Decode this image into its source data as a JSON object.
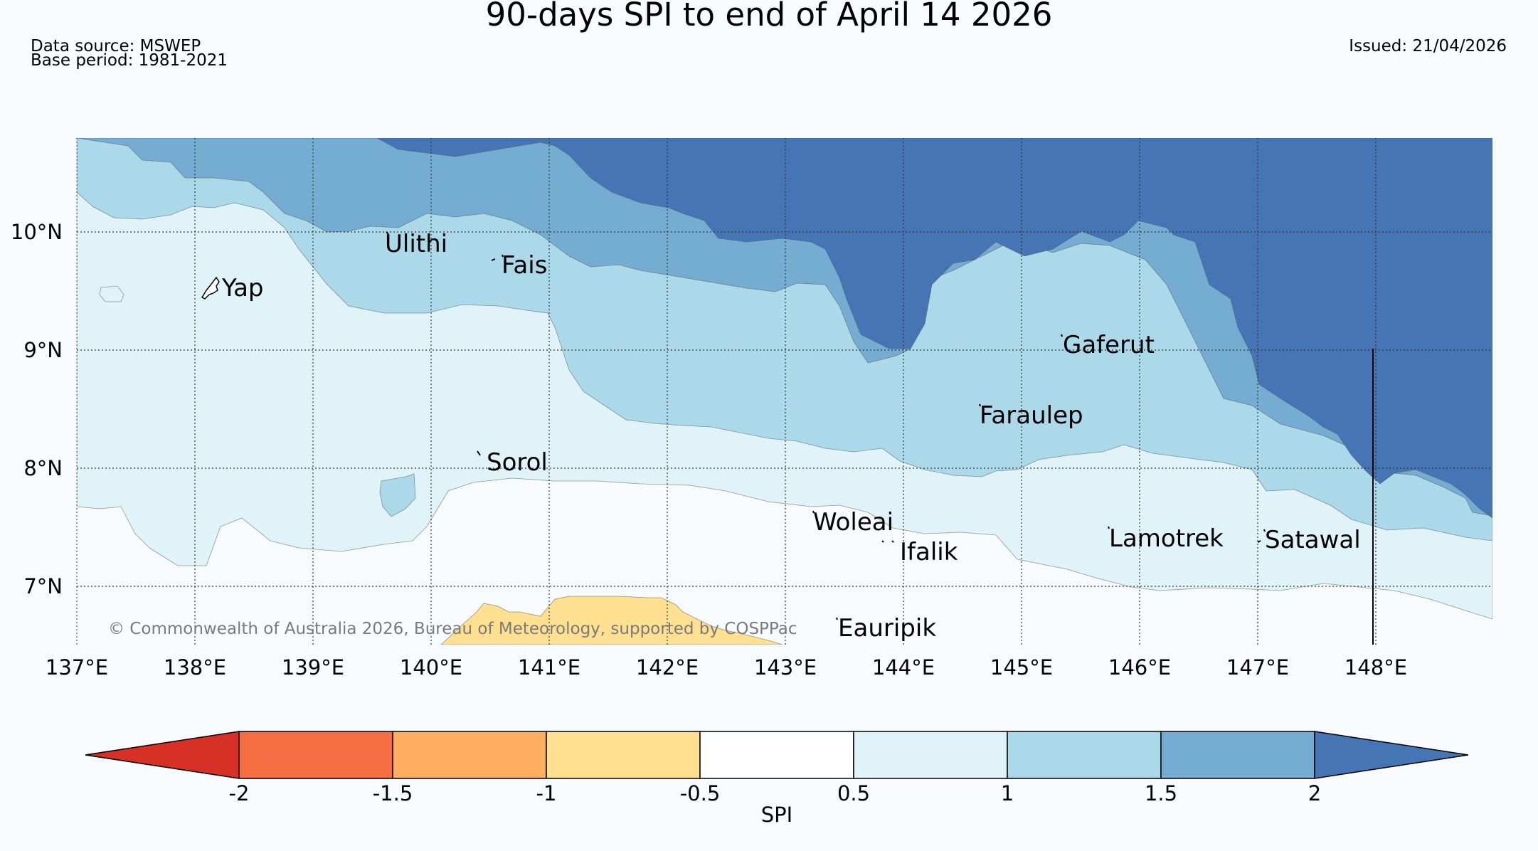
{
  "title": "90-days SPI to end of April 14 2026",
  "data_source": "Data source: MSWEP",
  "base_period": "Base period: 1981-2021",
  "issued": "Issued: 21/04/2026",
  "copyright": "© Commonwealth of Australia 2026, Bureau of Meteorology, supported by COSPPac",
  "map": {
    "lon_range": [
      137,
      149
    ],
    "lat_range": [
      6.5,
      10.8
    ],
    "lon_ticks": [
      {
        "value": 137,
        "label": "137°E"
      },
      {
        "value": 138,
        "label": "138°E"
      },
      {
        "value": 139,
        "label": "139°E"
      },
      {
        "value": 140,
        "label": "140°E"
      },
      {
        "value": 141,
        "label": "141°E"
      },
      {
        "value": 142,
        "label": "142°E"
      },
      {
        "value": 143,
        "label": "143°E"
      },
      {
        "value": 144,
        "label": "144°E"
      },
      {
        "value": 145,
        "label": "145°E"
      },
      {
        "value": 146,
        "label": "146°E"
      },
      {
        "value": 147,
        "label": "147°E"
      },
      {
        "value": 148,
        "label": "148°E"
      }
    ],
    "lat_ticks": [
      {
        "value": 10,
        "label": "10°N"
      },
      {
        "value": 9,
        "label": "9°N"
      },
      {
        "value": 8,
        "label": "8°N"
      },
      {
        "value": 7,
        "label": "7°N"
      }
    ],
    "places": [
      {
        "name": "Ulithi",
        "lon": 139.72,
        "lat": 9.88
      },
      {
        "name": "Fais",
        "lon": 140.52,
        "lat": 9.74
      },
      {
        "name": "Yap",
        "lon": 138.15,
        "lat": 9.53
      },
      {
        "name": "Gaferut",
        "lon": 145.38,
        "lat": 9.03
      },
      {
        "name": "Faraulep",
        "lon": 144.6,
        "lat": 8.6
      },
      {
        "name": "Sorol",
        "lon": 140.4,
        "lat": 8.13
      },
      {
        "name": "Woleai",
        "lon": 143.28,
        "lat": 7.58
      },
      {
        "name": "Ifalik",
        "lon": 144.0,
        "lat": 7.38
      },
      {
        "name": "Lamotrek",
        "lon": 145.8,
        "lat": 7.48
      },
      {
        "name": "Satawal",
        "lon": 147.03,
        "lat": 7.37
      },
      {
        "name": "Eauripik",
        "lon": 143.08,
        "lat": 6.68
      }
    ],
    "spi_zones_note": "SPI increases from south-west (near normal) to north-east (very wet, above 2); a small dry patch between -1 and -0.5 near 141-142.5°E at the southern edge."
  },
  "colorbar": {
    "label": "SPI",
    "ticks": [
      "-2",
      "-1.5",
      "-1",
      "-0.5",
      "0.5",
      "1",
      "1.5",
      "2"
    ],
    "colors": [
      "#d73027",
      "#f46d43",
      "#fdae61",
      "#fee090",
      "#ffffff",
      "#e0f3f8",
      "#abd9e9",
      "#74add1",
      "#4575b4"
    ]
  },
  "colors": {
    "very_wet": "#4575b4",
    "wet": "#74add1",
    "mod_wet": "#abd9e9",
    "mild_wet": "#e0f3f8",
    "near_normal": "#f7fbfd",
    "mild_dry": "#fee090"
  }
}
